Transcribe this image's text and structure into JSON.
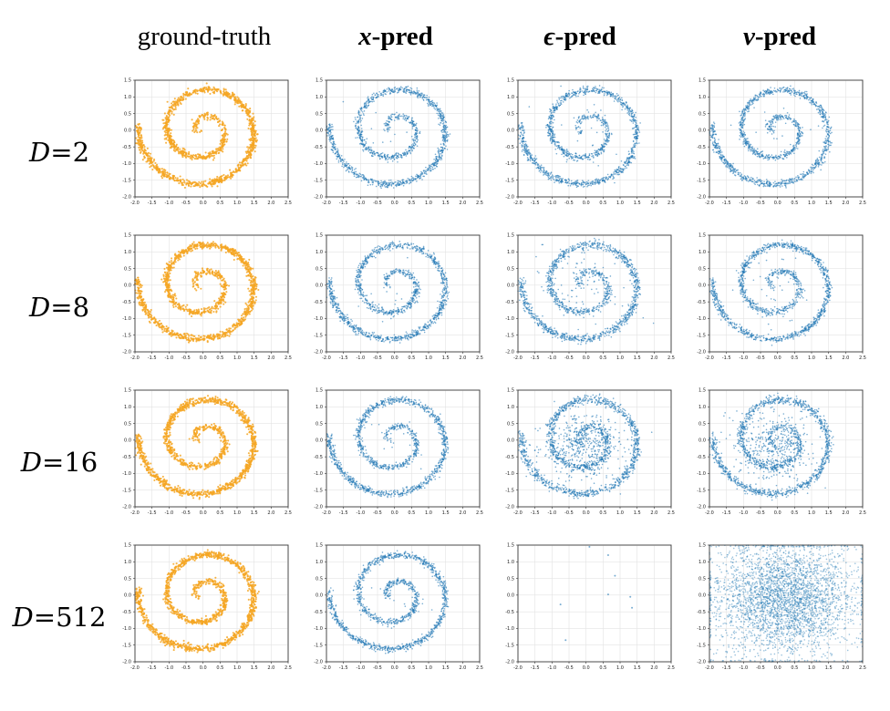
{
  "columns": [
    {
      "id": "gt",
      "symbol": "",
      "label": "ground-truth",
      "color": "#f5a623"
    },
    {
      "id": "x",
      "symbol": "x",
      "label": "-pred",
      "color": "#1f77b4"
    },
    {
      "id": "eps",
      "symbol": "ϵ",
      "label": "-pred",
      "color": "#1f77b4"
    },
    {
      "id": "v",
      "symbol": "v",
      "label": "-pred",
      "color": "#1f77b4"
    }
  ],
  "rows": [
    {
      "d_symbol": "D",
      "eq": "=",
      "value": "2"
    },
    {
      "d_symbol": "D",
      "eq": "=",
      "value": "8"
    },
    {
      "d_symbol": "D",
      "eq": "=",
      "value": "16"
    },
    {
      "d_symbol": "D",
      "eq": "=",
      "value": "512"
    }
  ],
  "chart_data": {
    "type": "scatter",
    "xlim": [
      -2.0,
      2.5
    ],
    "ylim": [
      -2.0,
      1.5
    ],
    "xticks": [
      "-2.0",
      "-1.5",
      "-1.0",
      "-0.5",
      "0.0",
      "0.5",
      "1.0",
      "1.5",
      "2.0",
      "2.5"
    ],
    "yticks": [
      "-2.0",
      "-1.5",
      "-1.0",
      "-0.5",
      "0.0",
      "0.5",
      "1.0",
      "1.5"
    ],
    "xtick_values": [
      -2.0,
      -1.5,
      -1.0,
      -0.5,
      0.0,
      0.5,
      1.0,
      1.5,
      2.0,
      2.5
    ],
    "ytick_values": [
      -2.0,
      -1.5,
      -1.0,
      -0.5,
      0.0,
      0.5,
      1.0,
      1.5
    ],
    "grid": true,
    "spiral": {
      "center": [
        0.0,
        0.0
      ],
      "theta_start": 0.6,
      "theta_end": 14.2,
      "radius_per_radian": 0.135
    },
    "panels": [
      {
        "row": "D=2",
        "col": "ground-truth",
        "pattern": "spiral",
        "spread": 0.05,
        "noise_fraction": 0.0
      },
      {
        "row": "D=2",
        "col": "x-pred",
        "pattern": "spiral",
        "spread": 0.05,
        "noise_fraction": 0.01
      },
      {
        "row": "D=2",
        "col": "ϵ-pred",
        "pattern": "spiral",
        "spread": 0.05,
        "noise_fraction": 0.02
      },
      {
        "row": "D=2",
        "col": "v-pred",
        "pattern": "spiral",
        "spread": 0.05,
        "noise_fraction": 0.01
      },
      {
        "row": "D=8",
        "col": "ground-truth",
        "pattern": "spiral",
        "spread": 0.05,
        "noise_fraction": 0.0
      },
      {
        "row": "D=8",
        "col": "x-pred",
        "pattern": "spiral",
        "spread": 0.05,
        "noise_fraction": 0.01
      },
      {
        "row": "D=8",
        "col": "ϵ-pred",
        "pattern": "spiral",
        "spread": 0.06,
        "noise_fraction": 0.06
      },
      {
        "row": "D=8",
        "col": "v-pred",
        "pattern": "spiral",
        "spread": 0.05,
        "noise_fraction": 0.03
      },
      {
        "row": "D=16",
        "col": "ground-truth",
        "pattern": "spiral",
        "spread": 0.05,
        "noise_fraction": 0.0
      },
      {
        "row": "D=16",
        "col": "x-pred",
        "pattern": "spiral",
        "spread": 0.05,
        "noise_fraction": 0.01
      },
      {
        "row": "D=16",
        "col": "ϵ-pred",
        "pattern": "spiral_blob",
        "spread": 0.06,
        "noise_fraction": 0.35
      },
      {
        "row": "D=16",
        "col": "v-pred",
        "pattern": "spiral_blob",
        "spread": 0.06,
        "noise_fraction": 0.3
      },
      {
        "row": "D=512",
        "col": "ground-truth",
        "pattern": "spiral",
        "spread": 0.05,
        "noise_fraction": 0.0
      },
      {
        "row": "D=512",
        "col": "x-pred",
        "pattern": "spiral",
        "spread": 0.05,
        "noise_fraction": 0.01
      },
      {
        "row": "D=512",
        "col": "ϵ-pred",
        "pattern": "sparse",
        "points": [
          [
            0.1,
            1.45
          ],
          [
            0.65,
            1.2
          ],
          [
            0.85,
            0.58
          ],
          [
            0.65,
            0.02
          ],
          [
            -0.75,
            -0.28
          ],
          [
            -0.6,
            -1.35
          ],
          [
            1.3,
            -0.05
          ],
          [
            1.35,
            -0.38
          ]
        ]
      },
      {
        "row": "D=512",
        "col": "v-pred",
        "pattern": "noise",
        "mean": [
          0.2,
          -0.1
        ],
        "std": 0.85
      }
    ]
  }
}
